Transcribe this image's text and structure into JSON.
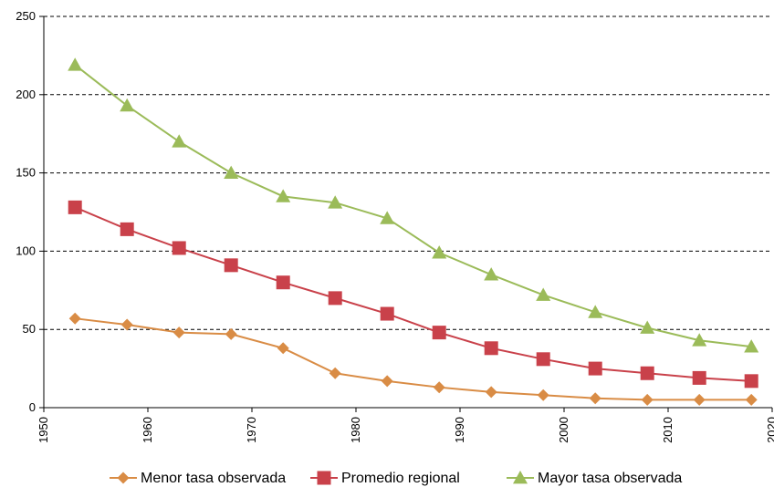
{
  "chart_data": {
    "type": "line",
    "title": "",
    "xlabel": "",
    "ylabel": "",
    "xlim": [
      1950,
      2020
    ],
    "ylim": [
      0,
      250
    ],
    "x_ticks": [
      "1950",
      "1960",
      "1970",
      "1980",
      "1990",
      "2000",
      "2010",
      "2020"
    ],
    "y_ticks": [
      "0",
      "50",
      "100",
      "150",
      "200",
      "250"
    ],
    "grid": "horizontal-dashed",
    "legend_position": "bottom",
    "x": [
      1953,
      1958,
      1963,
      1968,
      1973,
      1978,
      1983,
      1988,
      1993,
      1998,
      2003,
      2008,
      2013,
      2018
    ],
    "series": [
      {
        "name": "Menor tasa observada",
        "color": "#D98C45",
        "marker": "diamond",
        "values": [
          57,
          53,
          48,
          47,
          38,
          22,
          17,
          13,
          10,
          8,
          6,
          5,
          5,
          5
        ]
      },
      {
        "name": "Promedio regional",
        "color": "#C9414A",
        "marker": "square",
        "values": [
          128,
          114,
          102,
          91,
          80,
          70,
          60,
          48,
          38,
          31,
          25,
          22,
          19,
          17
        ]
      },
      {
        "name": "Mayor tasa observada",
        "color": "#9BBB59",
        "marker": "triangle",
        "values": [
          219,
          193,
          170,
          150,
          135,
          131,
          121,
          99,
          85,
          72,
          61,
          51,
          43,
          39
        ]
      }
    ]
  }
}
